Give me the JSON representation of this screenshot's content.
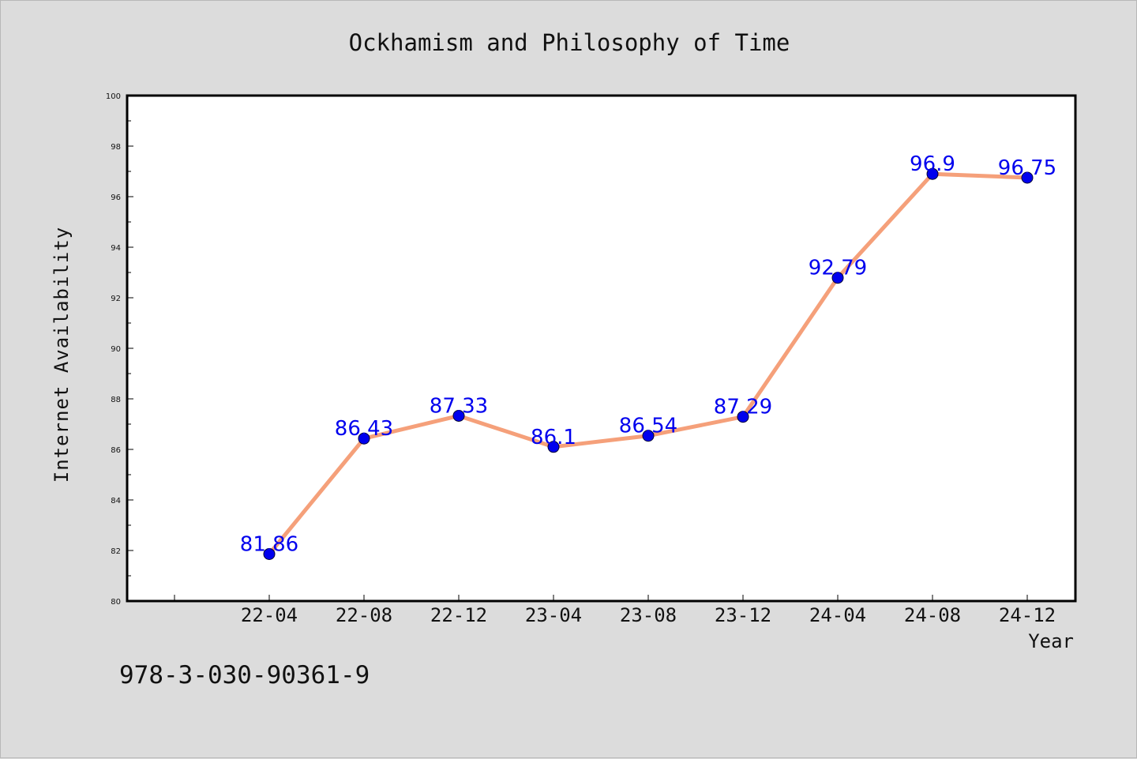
{
  "chart_data": {
    "type": "line",
    "title": "Ockhamism and Philosophy of Time",
    "xlabel": "Year",
    "ylabel": "Internet Availability",
    "categories": [
      "22-04",
      "22-08",
      "22-12",
      "23-04",
      "23-08",
      "23-12",
      "24-04",
      "24-08",
      "24-12"
    ],
    "series": [
      {
        "values": [
          81.86,
          86.43,
          87.33,
          86.1,
          86.54,
          87.29,
          92.79,
          96.9,
          96.75
        ],
        "line_color": "#f5a07a",
        "marker_color": "#0000ee"
      }
    ],
    "ylim": [
      80,
      100
    ],
    "yticks": [
      80,
      82,
      84,
      86,
      88,
      90,
      92,
      94,
      96,
      98,
      100
    ],
    "data_labels": [
      "81.86",
      "86.43",
      "87.33",
      "86.1",
      "86.54",
      "87.29",
      "92.79",
      "96.9",
      "96.75"
    ],
    "label_color": "#0000ee",
    "grid": false,
    "legend": "none"
  },
  "footnote": "978-3-030-90361-9"
}
